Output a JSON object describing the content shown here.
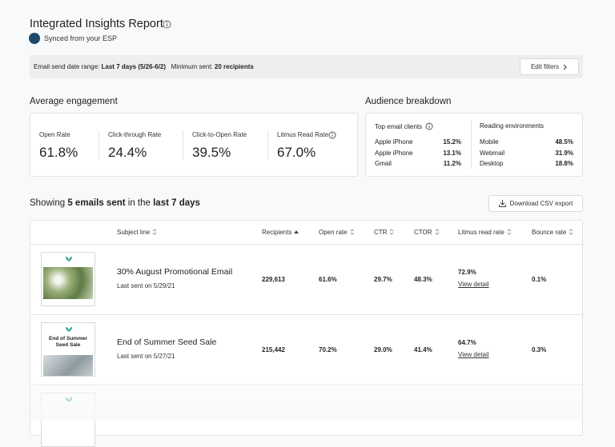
{
  "header": {
    "title": "Integrated Insights Report",
    "sync": "Synced from your ESP"
  },
  "filter_bar": {
    "range_label": "Email send date range:",
    "range_value": "Last 7 days (5/26-6/2)",
    "min_label": "Minimum sent:",
    "min_value": "20 recipients",
    "button": "Edit filters"
  },
  "engagement": {
    "title": "Average engagement",
    "metrics": [
      {
        "label": "Open Rate",
        "value": "61.8%"
      },
      {
        "label": "Click-through Rate",
        "value": "24.4%"
      },
      {
        "label": "Click-to-Open Rate",
        "value": "39.5%"
      },
      {
        "label": "Litmus Read Rate",
        "value": "67.0%"
      }
    ]
  },
  "audience": {
    "title": "Audience breakdown",
    "clients": {
      "title": "Top email clients",
      "rows": [
        {
          "name": "Apple iPhone",
          "value": "15.2%"
        },
        {
          "name": "Apple iPhone",
          "value": "13.1%"
        },
        {
          "name": "Gmail",
          "value": "11.2%"
        }
      ]
    },
    "environments": {
      "title": "Reading environments",
      "rows": [
        {
          "name": "Mobile",
          "value": "48.5%"
        },
        {
          "name": "Webmail",
          "value": "31.9%"
        },
        {
          "name": "Desktop",
          "value": "18.8%"
        }
      ]
    }
  },
  "summary": {
    "showing": "Showing",
    "count": "5 emails sent",
    "in_the": "in the",
    "period": "last 7 days",
    "button": "Download CSV export"
  },
  "table": {
    "headers": [
      "Subject line",
      "Recipients",
      "Open rate",
      "CTR",
      "CTOR",
      "Litmus read rate",
      "Bounce rate"
    ],
    "rows": [
      {
        "subject": "30% August Promotional Email",
        "last_sent": "Last sent on 5/29/21",
        "recipients": "229,613",
        "open_rate": "61.6%",
        "ctr": "29.7%",
        "ctor": "48.3%",
        "litmus": "72.9%",
        "link": "View detail",
        "bounce": "0.1%"
      },
      {
        "subject": "End of Summer Seed Sale",
        "thumb_text": "End of Summer Seed Sale",
        "last_sent": "Last sent on 5/27/21",
        "recipients": "215,442",
        "open_rate": "70.2%",
        "ctr": "29.0%",
        "ctor": "41.4%",
        "litmus": "64.7%",
        "link": "View detail",
        "bounce": "0.3%"
      }
    ]
  }
}
